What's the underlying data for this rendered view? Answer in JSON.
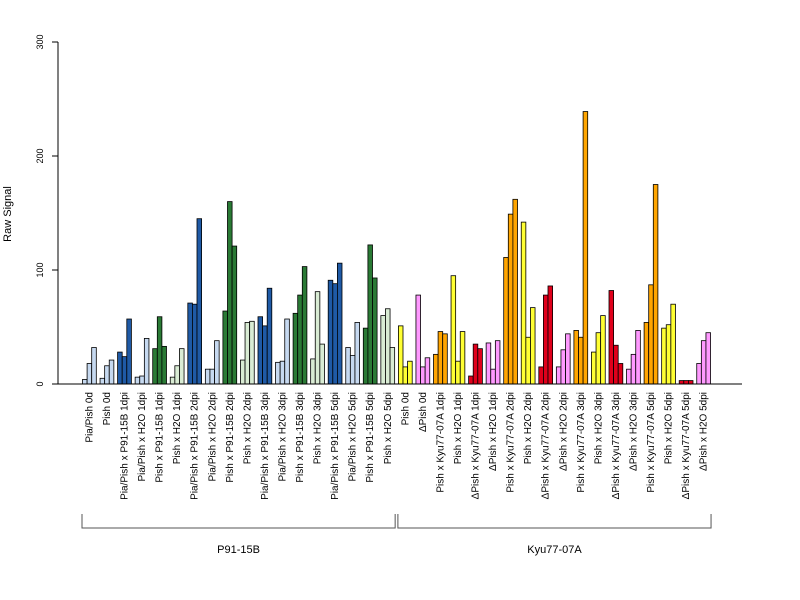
{
  "chart_data": {
    "type": "bar",
    "ylabel": "Raw Signal",
    "xlabel": "",
    "ylim": [
      0,
      300
    ],
    "yticks": [
      0,
      100,
      200,
      300
    ],
    "categories": [
      "Pia/Pish 0d",
      "Pish 0d",
      "Pia/Pish x P91-15B 1dpi",
      "Pia/Pish x H2O 1dpi",
      "Pish x P91-15B 1dpi",
      "Pish x H2O 1dpi",
      "Pia/Pish x P91-15B 2dpi",
      "Pia/Pish x H2O 2dpi",
      "Pish x P91-15B 2dpi",
      "Pish x H2O 2dpi",
      "Pia/Pish x P91-15B 3dpi",
      "Pia/Pish x H2O 3dpi",
      "Pish x P91-15B 3dpi",
      "Pish x H2O 3dpi",
      "Pia/Pish x P91-15B 5dpi",
      "Pia/Pish x H2O 5dpi",
      "Pish x P91-15B 5dpi",
      "Pish x H2O 5dpi",
      "Pish 0d",
      "ΔPish 0d",
      "Pish x Kyu77-07A 1dpi",
      "Pish x H2O 1dpi",
      "ΔPish x Kyu77-07A 1dpi",
      "ΔPish x H2O 1dpi",
      "Pish x Kyu77-07A 2dpi",
      "Pish x H2O 2dpi",
      "ΔPish x Kyu77-07A 2dpi",
      "ΔPish x H2O 2dpi",
      "Pish x Kyu77-07A 3dpi",
      "Pish x H2O 3dpi",
      "ΔPish x Kyu77-07A 3dpi",
      "ΔPish x H2O 3dpi",
      "Pish x Kyu77-07A 5dpi",
      "Pish x H2O 5dpi",
      "ΔPish x Kyu77-07A 5dpi",
      "ΔPish x H2O 5dpi"
    ],
    "values": [
      [
        4,
        18,
        32
      ],
      [
        5,
        16,
        21
      ],
      [
        28,
        24,
        57
      ],
      [
        6,
        7,
        40
      ],
      [
        31,
        59,
        33
      ],
      [
        6,
        16,
        31
      ],
      [
        71,
        70,
        145
      ],
      [
        13,
        13,
        38
      ],
      [
        64,
        160,
        121
      ],
      [
        21,
        54,
        55
      ],
      [
        59,
        51,
        84
      ],
      [
        19,
        20,
        57
      ],
      [
        62,
        78,
        103
      ],
      [
        22,
        81,
        35
      ],
      [
        91,
        88,
        106
      ],
      [
        32,
        25,
        54
      ],
      [
        49,
        122,
        93
      ],
      [
        60,
        66,
        32
      ],
      [
        51,
        15,
        20
      ],
      [
        78,
        15,
        23
      ],
      [
        26,
        46,
        44
      ],
      [
        95,
        20,
        46
      ],
      [
        7,
        35,
        31
      ],
      [
        36,
        13,
        38
      ],
      [
        111,
        149,
        162
      ],
      [
        142,
        41,
        67
      ],
      [
        15,
        78,
        86
      ],
      [
        15,
        30,
        44
      ],
      [
        47,
        41,
        239
      ],
      [
        28,
        45,
        60
      ],
      [
        82,
        34,
        18
      ],
      [
        13,
        26,
        47
      ],
      [
        54,
        87,
        175
      ],
      [
        49,
        52,
        70
      ],
      [
        3,
        3,
        3
      ],
      [
        18,
        38,
        45
      ]
    ],
    "bar_colors": [
      "#c6d9f0",
      "#c6d9f0",
      "#1f5aa6",
      "#c6d9f0",
      "#2a7a35",
      "#d9ecd4",
      "#1f5aa6",
      "#c6d9f0",
      "#2a7a35",
      "#d9ecd4",
      "#1f5aa6",
      "#c6d9f0",
      "#2a7a35",
      "#d9ecd4",
      "#1f5aa6",
      "#c6d9f0",
      "#2a7a35",
      "#d9ecd4",
      "#ffff33",
      "#ff99ff",
      "#ffa500",
      "#ffff33",
      "#e0001b",
      "#ff99ff",
      "#ffa500",
      "#ffff33",
      "#e0001b",
      "#ff99ff",
      "#ffa500",
      "#ffff33",
      "#e0001b",
      "#ff99ff",
      "#ffa500",
      "#ffff33",
      "#e0001b",
      "#ff99ff"
    ],
    "groups": [
      {
        "label": "P91-15B",
        "start": 0,
        "end": 17
      },
      {
        "label": "Kyu77-07A",
        "start": 18,
        "end": 35
      }
    ],
    "grid": false,
    "legend": "none"
  }
}
